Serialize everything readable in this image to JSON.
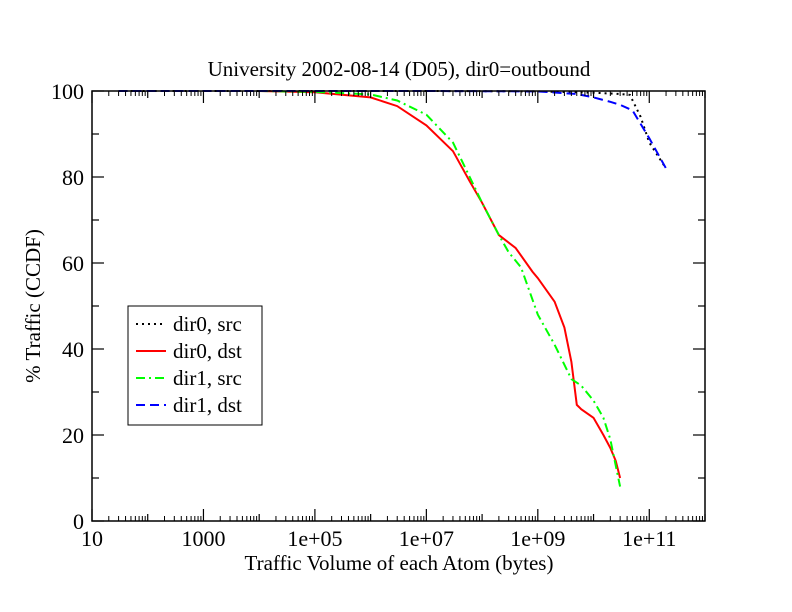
{
  "chart_data": {
    "type": "line",
    "title": "University 2002-08-14 (D05), dir0=outbound",
    "xlabel": "Traffic Volume of each Atom (bytes)",
    "ylabel": "% Traffic (CCDF)",
    "xscale": "log",
    "xlim": [
      10,
      1000000000000
    ],
    "ylim": [
      0,
      100
    ],
    "x_ticks": [
      {
        "value": 10,
        "label": "10"
      },
      {
        "value": 1000,
        "label": "1000"
      },
      {
        "value": 100000,
        "label": "1e+05"
      },
      {
        "value": 10000000,
        "label": "1e+07"
      },
      {
        "value": 1000000000,
        "label": "1e+09"
      },
      {
        "value": 100000000000,
        "label": "1e+11"
      }
    ],
    "y_ticks": [
      {
        "value": 0,
        "label": "0"
      },
      {
        "value": 20,
        "label": "20"
      },
      {
        "value": 40,
        "label": "40"
      },
      {
        "value": 60,
        "label": "60"
      },
      {
        "value": 80,
        "label": "80"
      },
      {
        "value": 100,
        "label": "100"
      }
    ],
    "grid": false,
    "legend_position": "middle-left",
    "series": [
      {
        "name": "dir0, src",
        "color": "#000000",
        "dash": "dotted",
        "x": [
          30,
          1000,
          100000,
          10000000,
          1000000000,
          10000000000,
          30000000000,
          45000000000,
          70000000000,
          100000000000,
          200000000000
        ],
        "y": [
          100,
          100,
          100,
          100,
          99.9,
          99.6,
          99.3,
          99.1,
          94.0,
          88.0,
          82.0
        ]
      },
      {
        "name": "dir0, dst",
        "color": "#ff0000",
        "dash": "solid",
        "x": [
          10000,
          100000,
          1000000,
          3000000,
          10000000,
          30000000,
          60000000,
          100000000,
          200000000,
          400000000,
          800000000,
          1000000000,
          2000000000,
          3000000000,
          4000000000,
          5000000000,
          5500000000,
          6000000000,
          10000000000,
          15000000000,
          20000000000,
          25000000000,
          30000000000
        ],
        "y": [
          100,
          99.7,
          98.5,
          96.5,
          92.0,
          86.0,
          79.0,
          74.0,
          66.5,
          63.5,
          58.0,
          56.5,
          51.0,
          45.0,
          37.0,
          27.0,
          26.5,
          26.0,
          24.0,
          20.0,
          17.0,
          14.0,
          10.0
        ]
      },
      {
        "name": "dir1, src",
        "color": "#00ff00",
        "dash": "dashdot",
        "x": [
          10000,
          100000,
          1000000,
          3000000,
          10000000,
          30000000,
          60000000,
          100000000,
          200000000,
          300000000,
          500000000,
          1000000000,
          2000000000,
          4000000000,
          6000000000,
          10000000000,
          15000000000,
          20000000000,
          30000000000
        ],
        "y": [
          100,
          99.8,
          99.2,
          97.8,
          94.5,
          88.0,
          80.0,
          74.0,
          66.5,
          62.5,
          59.0,
          48.0,
          41.0,
          33.0,
          31.5,
          28.0,
          24.0,
          19.0,
          8.0
        ]
      },
      {
        "name": "dir1, dst",
        "color": "#0000ff",
        "dash": "dashed",
        "x": [
          30,
          1000,
          100000,
          10000000,
          1000000000,
          5000000000,
          10000000000,
          20000000000,
          30000000000,
          50000000000,
          100000000000,
          200000000000
        ],
        "y": [
          100,
          100,
          100,
          100,
          99.9,
          99.3,
          98.5,
          97.5,
          96.8,
          95.5,
          89.0,
          82.0
        ]
      }
    ]
  }
}
